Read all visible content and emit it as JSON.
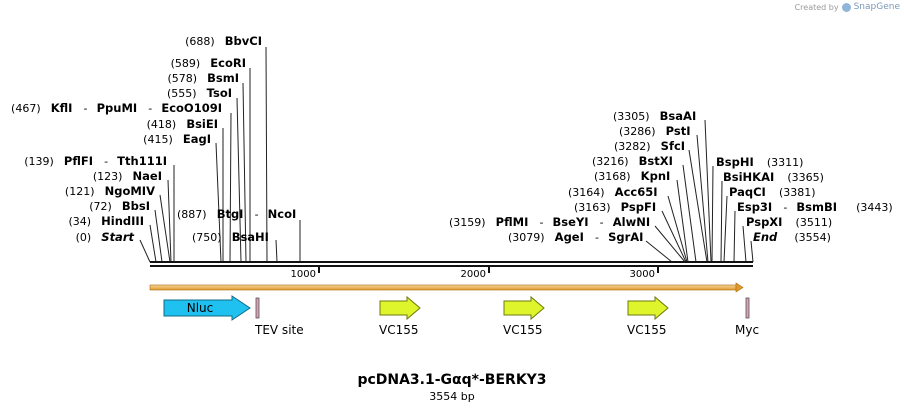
{
  "credit": {
    "text": "Created by",
    "brand": "SnapGene"
  },
  "map": {
    "title": "pcDNA3.1-Gαq*-BERKY3",
    "length_label": "3554 bp",
    "length_bp": 3554,
    "ticks": [
      "1000",
      "2000",
      "3000"
    ],
    "sites": [
      {
        "id": "s688",
        "num": "(688)",
        "name": "BbvCI"
      },
      {
        "id": "s589",
        "num": "(589)",
        "name": "EcoRI"
      },
      {
        "id": "s578",
        "num": "(578)",
        "name": "BsmI"
      },
      {
        "id": "s555",
        "num": "(555)",
        "name": "TsoI"
      },
      {
        "id": "s467",
        "num": "(467)",
        "name": "KflI",
        "sep1": "-",
        "name2": "PpuMI",
        "sep2": "-",
        "name3": "EcoO109I"
      },
      {
        "id": "s418",
        "num": "(418)",
        "name": "BsiEI"
      },
      {
        "id": "s415",
        "num": "(415)",
        "name": "EagI"
      },
      {
        "id": "s139",
        "num": "(139)",
        "name": "PflFI",
        "sep1": "-",
        "name2": "Tth111I"
      },
      {
        "id": "s123",
        "num": "(123)",
        "name": "NaeI"
      },
      {
        "id": "s121",
        "num": "(121)",
        "name": "NgoMIV"
      },
      {
        "id": "s72",
        "num": "(72)",
        "name": "BbsI"
      },
      {
        "id": "s34",
        "num": "(34)",
        "name": "HindIII"
      },
      {
        "id": "s0",
        "num": "(0)",
        "name": "Start"
      },
      {
        "id": "s887",
        "num": "(887)",
        "name": "BtgI",
        "sep1": "-",
        "name2": "NcoI"
      },
      {
        "id": "s750",
        "num": "(750)",
        "name": "BsaHI"
      },
      {
        "id": "s3305",
        "num": "(3305)",
        "name": "BsaAI"
      },
      {
        "id": "s3286",
        "num": "(3286)",
        "name": "PstI"
      },
      {
        "id": "s3282",
        "num": "(3282)",
        "name": "SfcI"
      },
      {
        "id": "s3216",
        "num": "(3216)",
        "name": "BstXI"
      },
      {
        "id": "s3168",
        "num": "(3168)",
        "name": "KpnI"
      },
      {
        "id": "s3164",
        "num": "(3164)",
        "name": "Acc65I"
      },
      {
        "id": "s3163",
        "num": "(3163)",
        "name": "PspFI"
      },
      {
        "id": "s3159",
        "num": "(3159)",
        "name": "PflMI",
        "sep1": "-",
        "name2": "BseYI",
        "sep2": "-",
        "name3": "AlwNI"
      },
      {
        "id": "s3079",
        "num": "(3079)",
        "name": "AgeI",
        "sep1": "-",
        "name2": "SgrAI"
      },
      {
        "id": "s3311",
        "num": "(3311)",
        "name": "BspHI"
      },
      {
        "id": "s3365",
        "num": "(3365)",
        "name": "BsiHKAI"
      },
      {
        "id": "s3381",
        "num": "(3381)",
        "name": "PaqCI"
      },
      {
        "id": "s3443",
        "num": "(3443)",
        "name": "Esp3I",
        "sep1": "-",
        "name2": "BsmBI"
      },
      {
        "id": "s3511",
        "num": "(3511)",
        "name": "PspXI"
      },
      {
        "id": "s3554",
        "num": "(3554)",
        "name": "End"
      }
    ],
    "features": [
      {
        "id": "nluc",
        "label": "Nluc",
        "color": "#1ec1f0"
      },
      {
        "id": "tev",
        "label": "TEV site",
        "color": "#d9a0b6"
      },
      {
        "id": "vc1",
        "label": "VC155",
        "color": "#ddf52a"
      },
      {
        "id": "vc2",
        "label": "VC155",
        "color": "#ddf52a"
      },
      {
        "id": "vc3",
        "label": "VC155",
        "color": "#ddf52a"
      },
      {
        "id": "myc",
        "label": "Myc",
        "color": "#d9a0b6"
      }
    ],
    "orf_color": "#f2b24a"
  }
}
